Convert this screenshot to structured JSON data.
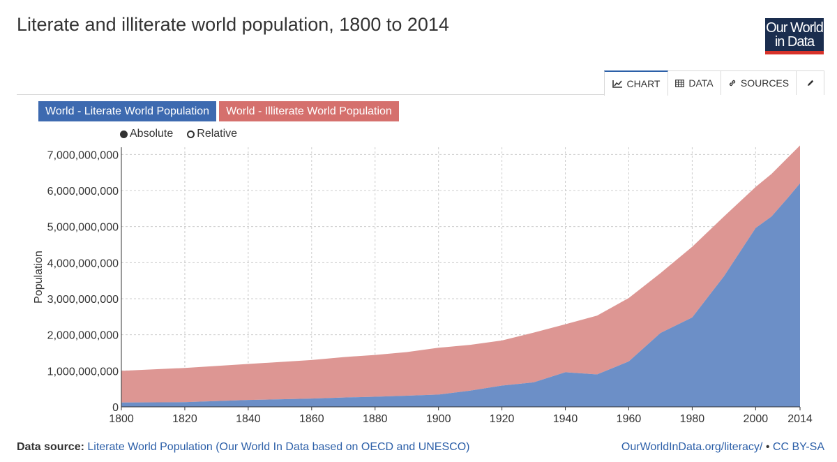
{
  "header": {
    "title": "Literate and illiterate world population, 1800 to 2014",
    "logo_line1": "Our World",
    "logo_line2": "in Data"
  },
  "tabs": [
    {
      "label": "CHART",
      "icon": "line-chart-icon",
      "active": true
    },
    {
      "label": "DATA",
      "icon": "table-icon",
      "active": false
    },
    {
      "label": "SOURCES",
      "icon": "link-icon",
      "active": false
    },
    {
      "label": "",
      "icon": "pencil-icon",
      "active": false
    }
  ],
  "legend": [
    {
      "label": "World - Literate World Population",
      "color": "#3d6ab0"
    },
    {
      "label": "World - Illiterate World Population",
      "color": "#d5706d"
    }
  ],
  "mode": {
    "absolute_label": "Absolute",
    "relative_label": "Relative",
    "selected": "absolute"
  },
  "colors": {
    "literate_fill": "#6c8fc7",
    "illiterate_fill": "#dd9693",
    "grid": "#cccccc"
  },
  "chart_data": {
    "type": "area",
    "stacked": true,
    "title": "Literate and illiterate world population, 1800 to 2014",
    "ylabel": "Population",
    "xlabel": "",
    "xlim": [
      1800,
      2014
    ],
    "ylim": [
      0,
      7200000000
    ],
    "x_ticks": [
      1800,
      1820,
      1840,
      1860,
      1880,
      1900,
      1920,
      1940,
      1960,
      1980,
      2000,
      2014
    ],
    "y_ticks": [
      0,
      1000000000,
      2000000000,
      3000000000,
      4000000000,
      5000000000,
      6000000000,
      7000000000
    ],
    "y_tick_labels": [
      "0",
      "1,000,000,000",
      "2,000,000,000",
      "3,000,000,000",
      "4,000,000,000",
      "5,000,000,000",
      "6,000,000,000",
      "7,000,000,000"
    ],
    "x": [
      1800,
      1820,
      1840,
      1860,
      1870,
      1880,
      1890,
      1900,
      1910,
      1920,
      1930,
      1940,
      1950,
      1960,
      1970,
      1980,
      1990,
      2000,
      2005,
      2010,
      2014
    ],
    "series": [
      {
        "name": "World - Literate World Population",
        "values": [
          120000000,
          130000000,
          190000000,
          230000000,
          260000000,
          280000000,
          310000000,
          340000000,
          450000000,
          590000000,
          680000000,
          960000000,
          900000000,
          1260000000,
          2050000000,
          2480000000,
          3620000000,
          4960000000,
          5280000000,
          5780000000,
          6200000000
        ]
      },
      {
        "name": "World - Illiterate World Population",
        "values": [
          880000000,
          950000000,
          1000000000,
          1070000000,
          1120000000,
          1160000000,
          1210000000,
          1300000000,
          1270000000,
          1250000000,
          1380000000,
          1330000000,
          1630000000,
          1760000000,
          1660000000,
          1960000000,
          1660000000,
          1140000000,
          1180000000,
          1120000000,
          1050000000
        ]
      }
    ]
  },
  "footer": {
    "source_label": "Data source:",
    "source_text": "Literate World Population (Our World In Data based on OECD and UNESCO)",
    "url": "OurWorldInData.org/literacy/",
    "separator": "•",
    "license": "CC BY-SA"
  }
}
